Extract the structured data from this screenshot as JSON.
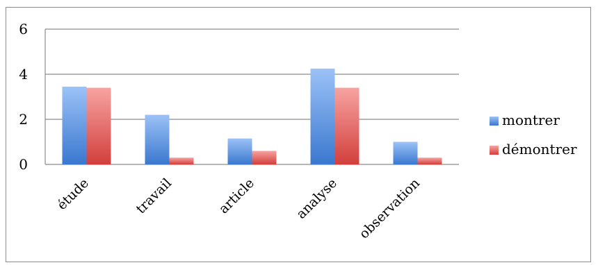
{
  "chart_data": {
    "type": "bar",
    "categories": [
      "étude",
      "travail",
      "article",
      "analyse",
      "observation"
    ],
    "series": [
      {
        "name": "montrer",
        "values": [
          3.45,
          2.2,
          1.15,
          4.25,
          1.0
        ],
        "color": "#4f81d4"
      },
      {
        "name": "démontrer",
        "values": [
          3.4,
          0.3,
          0.6,
          3.4,
          0.3
        ],
        "color": "#d9534f"
      }
    ],
    "ylim": [
      0,
      6
    ],
    "yticks": [
      "0",
      "2",
      "4",
      "6"
    ],
    "grid": true,
    "legend": "right"
  }
}
